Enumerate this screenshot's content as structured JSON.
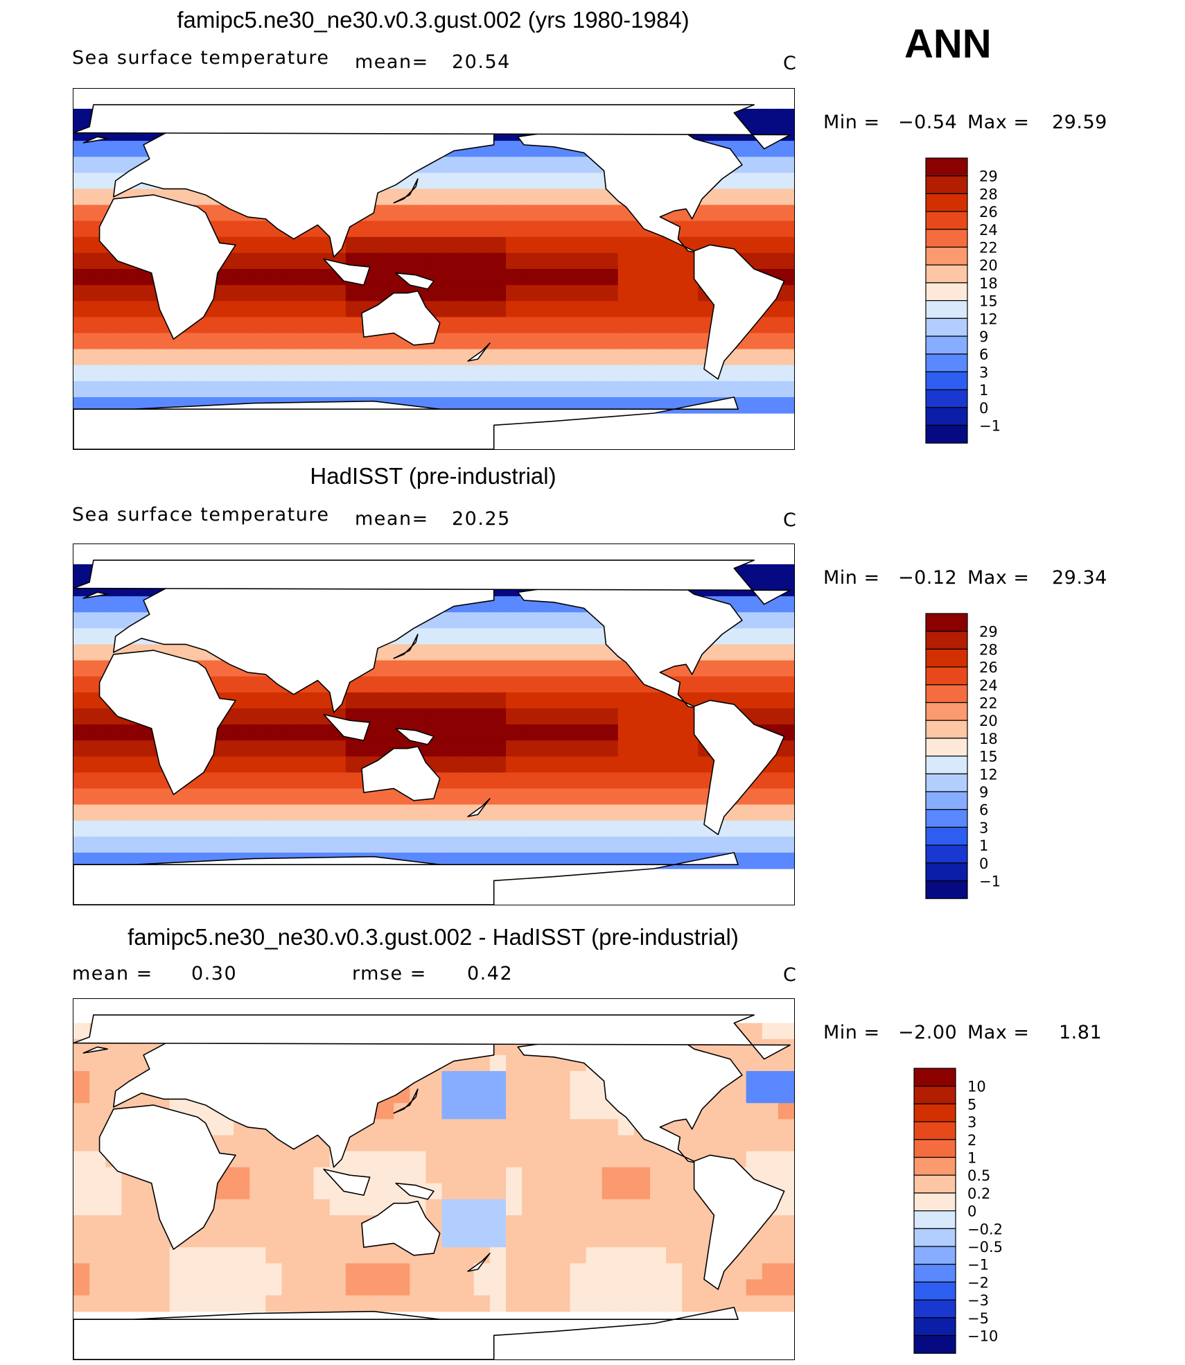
{
  "season_label": "ANN",
  "panels": [
    {
      "title": "famipc5.ne30_ne30.v0.3.gust.002 (yrs 1980-1984)",
      "left_label": "Sea surface temperature",
      "mean_label": "mean=",
      "mean_value": "20.54",
      "units": "C",
      "min_label": "Min =",
      "min_value": "−0.54",
      "max_label": "Max =",
      "max_value": "29.59",
      "map_name": "model-sst-map"
    },
    {
      "title": "HadISST (pre-industrial)",
      "left_label": "Sea surface temperature",
      "mean_label": "mean=",
      "mean_value": "20.25",
      "units": "C",
      "min_label": "Min =",
      "min_value": "−0.12",
      "max_label": "Max =",
      "max_value": "29.34",
      "map_name": "obs-sst-map"
    },
    {
      "title": "famipc5.ne30_ne30.v0.3.gust.002 - HadISST (pre-industrial)",
      "mean_label": "mean =",
      "mean_value": "0.30",
      "rmse_label": "rmse =",
      "rmse_value": "0.42",
      "units": "C",
      "min_label": "Min =",
      "min_value": "−2.00",
      "max_label": "Max =",
      "max_value": "1.81",
      "map_name": "difference-map"
    }
  ],
  "chart_data": [
    {
      "type": "heatmap",
      "title": "famipc5.ne30_ne30.v0.3.gust.002 (yrs 1980-1984)",
      "variable": "Sea surface temperature",
      "units": "C",
      "mean": 20.54,
      "min": -0.54,
      "max": 29.59,
      "colorbar_levels": [
        "29",
        "28",
        "26",
        "24",
        "22",
        "20",
        "18",
        "15",
        "12",
        "9",
        "6",
        "3",
        "1",
        "0",
        "−1"
      ],
      "colorbar_colors": [
        "#8b0000",
        "#b31d00",
        "#d23000",
        "#e8491a",
        "#f56d3e",
        "#fb9a6e",
        "#fdc6a4",
        "#fee9d8",
        "#d7e9fb",
        "#b2ceff",
        "#86adff",
        "#5a88ff",
        "#2e5ef0",
        "#1838d0",
        "#0a1ea8",
        "#050a82"
      ]
    },
    {
      "type": "heatmap",
      "title": "HadISST (pre-industrial)",
      "variable": "Sea surface temperature",
      "units": "C",
      "mean": 20.25,
      "min": -0.12,
      "max": 29.34,
      "colorbar_levels": [
        "29",
        "28",
        "26",
        "24",
        "22",
        "20",
        "18",
        "15",
        "12",
        "9",
        "6",
        "3",
        "1",
        "0",
        "−1"
      ],
      "colorbar_colors": [
        "#8b0000",
        "#b31d00",
        "#d23000",
        "#e8491a",
        "#f56d3e",
        "#fb9a6e",
        "#fdc6a4",
        "#fee9d8",
        "#d7e9fb",
        "#b2ceff",
        "#86adff",
        "#5a88ff",
        "#2e5ef0",
        "#1838d0",
        "#0a1ea8",
        "#050a82"
      ]
    },
    {
      "type": "heatmap",
      "title": "famipc5.ne30_ne30.v0.3.gust.002 - HadISST (pre-industrial)",
      "units": "C",
      "mean": 0.3,
      "rmse": 0.42,
      "min": -2.0,
      "max": 1.81,
      "colorbar_levels": [
        "10",
        "5",
        "3",
        "2",
        "1",
        "0.5",
        "0.2",
        "0",
        "−0.2",
        "−0.5",
        "−1",
        "−2",
        "−3",
        "−5",
        "−10"
      ],
      "colorbar_colors": [
        "#8b0000",
        "#b31d00",
        "#d23000",
        "#e8491a",
        "#f56d3e",
        "#fb9a6e",
        "#fdc6a4",
        "#fee9d8",
        "#d7e9fb",
        "#b2ceff",
        "#86adff",
        "#5a88ff",
        "#2e5ef0",
        "#1838d0",
        "#0a1ea8",
        "#050a82"
      ]
    }
  ]
}
